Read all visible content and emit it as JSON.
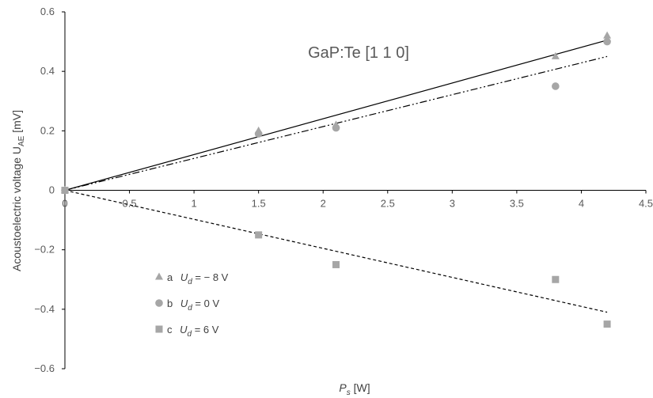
{
  "chart_data": {
    "type": "scatter",
    "title": "GaP:Te [1 1 0]",
    "xlabel": {
      "main": "P",
      "sub": "s",
      "unit": " [W]"
    },
    "ylabel": {
      "main": "Acoustoelectric voltage  U",
      "sub": "AE",
      "unit": " [mV]"
    },
    "xlim": [
      0,
      4.5
    ],
    "ylim": [
      -0.6,
      0.6
    ],
    "xticks": [
      0,
      0.5,
      1,
      1.5,
      2,
      2.5,
      3,
      3.5,
      4,
      4.5
    ],
    "yticks": [
      -0.6,
      -0.4,
      -0.2,
      0,
      0.2,
      0.4,
      0.6
    ],
    "xtick_labels": [
      "0",
      "0.5",
      "1",
      "1.5",
      "2",
      "2.5",
      "3",
      "3.5",
      "4",
      "4.5"
    ],
    "ytick_labels": [
      "−0.6",
      "−0.4",
      "−0.2",
      "0",
      "0.2",
      "0.4",
      "0.6"
    ],
    "grid": false,
    "legend_position": "bottom-left",
    "series": [
      {
        "id": "a",
        "marker": "triangle",
        "color": "#a6a6a6",
        "legend_prefix": "a",
        "legend_sub": "d",
        "legend_value": " = − 8 V",
        "x": [
          0,
          1.5,
          2.1,
          3.8,
          4.2
        ],
        "y": [
          0,
          0.2,
          0.22,
          0.45,
          0.52
        ],
        "trend": {
          "line": "solid",
          "x": [
            0,
            4.2
          ],
          "y": [
            0,
            0.505
          ]
        }
      },
      {
        "id": "b",
        "marker": "circle",
        "color": "#a6a6a6",
        "legend_prefix": "b",
        "legend_sub": "d",
        "legend_value": " = 0 V",
        "x": [
          0,
          1.5,
          2.1,
          3.8,
          4.2
        ],
        "y": [
          0,
          0.19,
          0.21,
          0.35,
          0.5
        ],
        "trend": {
          "line": "dash-dot-dot",
          "x": [
            0,
            4.2
          ],
          "y": [
            0,
            0.45
          ]
        }
      },
      {
        "id": "c",
        "marker": "square",
        "color": "#a6a6a6",
        "legend_prefix": "c",
        "legend_sub": "d",
        "legend_value": " = 6 V",
        "x": [
          0,
          1.5,
          2.1,
          3.8,
          4.2
        ],
        "y": [
          0,
          -0.15,
          -0.25,
          -0.3,
          -0.45
        ],
        "trend": {
          "line": "dashed",
          "x": [
            0,
            4.2
          ],
          "y": [
            0,
            -0.41
          ]
        }
      }
    ]
  }
}
